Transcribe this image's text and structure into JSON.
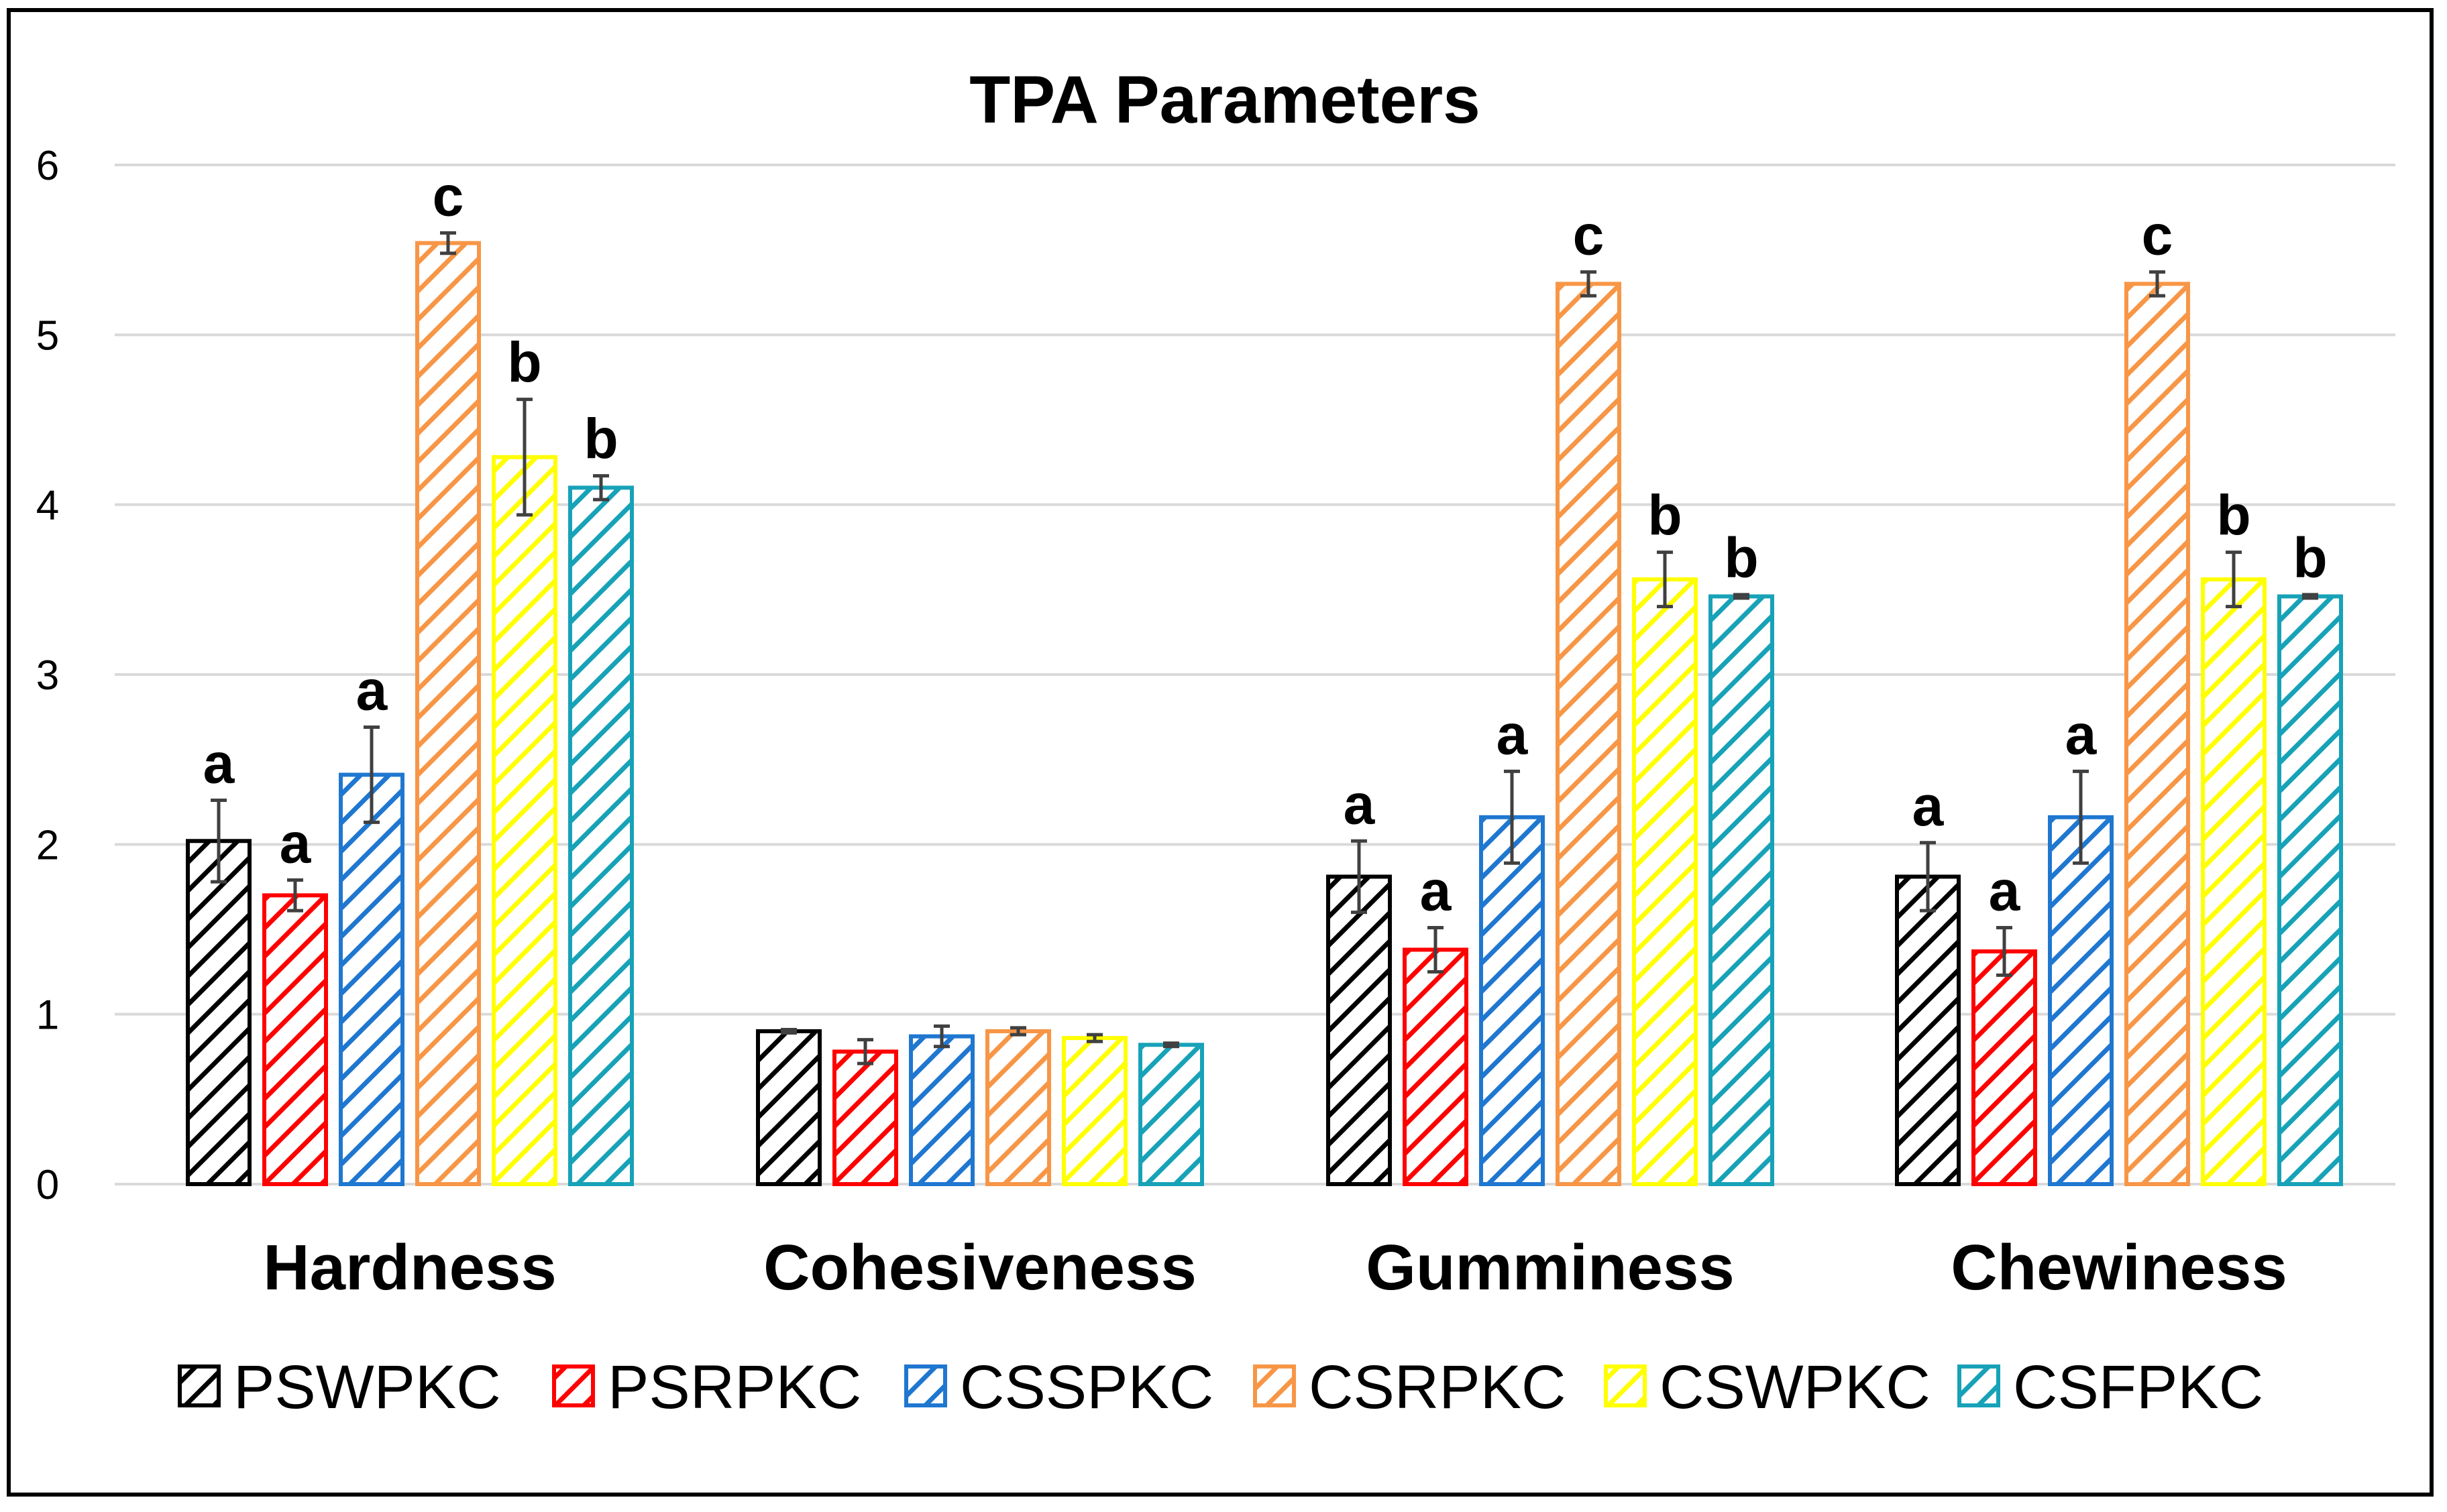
{
  "chart_data": {
    "type": "bar",
    "title": "TPA Parameters",
    "xlabel": "",
    "ylabel": "",
    "ylim": [
      0,
      6
    ],
    "yticks": [
      "0",
      "1",
      "2",
      "3",
      "4",
      "5",
      "6"
    ],
    "grid": true,
    "legend_position": "bottom",
    "categories": [
      "Hardness",
      "Cohesiveness",
      "Gumminess",
      "Chewiness"
    ],
    "series": [
      {
        "name": "PSWPKC",
        "color": "#000000",
        "values": [
          2.02,
          0.9,
          1.81,
          1.81
        ],
        "errors": [
          0.24,
          0.01,
          0.21,
          0.2
        ],
        "labels": [
          "a",
          "",
          "a",
          "a"
        ]
      },
      {
        "name": "PSRPKC",
        "color": "#ff0000",
        "values": [
          1.7,
          0.78,
          1.38,
          1.37
        ],
        "errors": [
          0.09,
          0.07,
          0.13,
          0.14
        ],
        "labels": [
          "a",
          "",
          "a",
          "a"
        ]
      },
      {
        "name": "CSSPKC",
        "color": "#1f77d0",
        "values": [
          2.41,
          0.87,
          2.16,
          2.16
        ],
        "errors": [
          0.28,
          0.06,
          0.27,
          0.27
        ],
        "labels": [
          "a",
          "",
          "a",
          "a"
        ]
      },
      {
        "name": "CSRPKC",
        "color": "#f79646",
        "values": [
          5.54,
          0.9,
          5.3,
          5.3
        ],
        "errors": [
          0.06,
          0.02,
          0.07,
          0.07
        ],
        "labels": [
          "c",
          "",
          "c",
          "c"
        ]
      },
      {
        "name": "CSWPKC",
        "color": "#ffff00",
        "values": [
          4.28,
          0.86,
          3.56,
          3.56
        ],
        "errors": [
          0.34,
          0.02,
          0.16,
          0.16
        ],
        "labels": [
          "b",
          "",
          "b",
          "b"
        ]
      },
      {
        "name": "CSFPKC",
        "color": "#17a2b8",
        "values": [
          4.1,
          0.82,
          3.46,
          3.46
        ],
        "errors": [
          0.07,
          0.01,
          0.01,
          0.01
        ],
        "labels": [
          "b",
          "",
          "b",
          "b"
        ]
      }
    ]
  }
}
